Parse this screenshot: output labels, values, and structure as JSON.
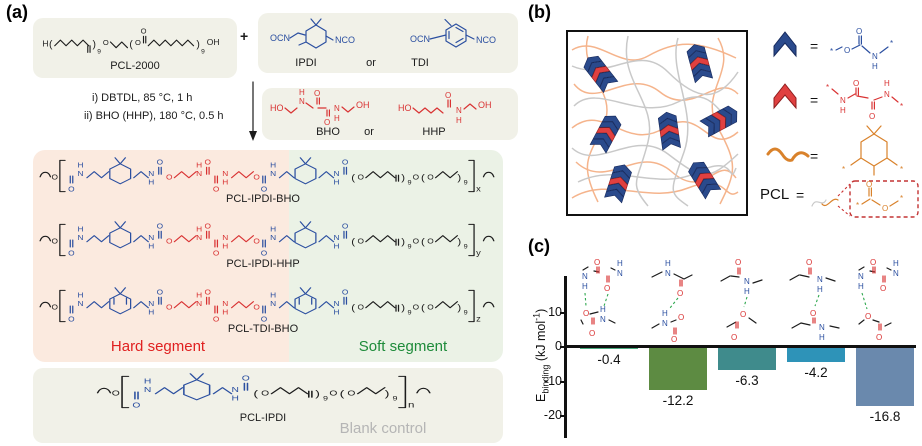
{
  "panels": {
    "a": "(a)",
    "b": "(b)",
    "c": "(c)"
  },
  "atoms": {
    "H": "H",
    "O": "O",
    "N": "N",
    "OH": "OH",
    "HO": "HO",
    "OCN": "OCN",
    "NCO": "NCO",
    "star": "*",
    "lp": "(",
    "rp": ")",
    "plus": "+",
    "eq": "="
  },
  "subs": {
    "x": "x",
    "y": "y",
    "z": "z",
    "n": "n",
    "nine": "9"
  },
  "scheme": {
    "pcl2000": "PCL-2000",
    "ipdi": "IPDI",
    "or_isocyanate": "or",
    "tdi": "TDI",
    "cond1": "i) DBTDL, 85 °C, 1 h",
    "cond2": "ii) BHO (HHP), 180 °C, 0.5 h",
    "bho": "BHO",
    "or_diol": "or",
    "hhp": "HHP",
    "product1": "PCL-IPDI-BHO",
    "product2": "PCL-IPDI-HHP",
    "product3": "PCL-TDI-BHO",
    "hard_segment": "Hard segment",
    "soft_segment": "Soft segment",
    "blank_name": "PCL-IPDI",
    "blank_caption": "Blank control"
  },
  "network": {
    "pcl": "PCL",
    "eq": "=",
    "legend_meanings": [
      "carbamate-group",
      "oxamide-group",
      "isophorone-ring",
      "pcl-ester-chain"
    ]
  },
  "colors": {
    "hard_segment_bg": "#fbeadf",
    "soft_segment_bg": "#ebf2e6",
    "reactant_bg": "#f1f1e8",
    "blue_struct": "#2b4fa0",
    "red_struct": "#d93333",
    "hard_label": "#e02020",
    "soft_label": "#1e8b3a",
    "blank_label": "#b5b5b5",
    "chain_orange": "#f5b48c",
    "chain_gray": "#c9c9c9",
    "chevron_blue": "#2a4a8c",
    "chevron_red": "#e04040",
    "hbond_green": "#2fa84f"
  },
  "chart_data": {
    "type": "bar",
    "title": "",
    "ylabel_parts": {
      "base": "E",
      "sub": "binding",
      "unit": " (kJ mol",
      "sup": "-1",
      "close": ")"
    },
    "yticks": [
      10,
      0,
      -10,
      -20
    ],
    "ylim": [
      -22,
      16
    ],
    "grid": false,
    "legend": "none",
    "categories": [
      "oxamide–carbamate double H-bond",
      "amide C=O to carbamate N–H",
      "amide N–H to ester O",
      "amide N–H to amide C=O",
      "oxamide N–H to ester O"
    ],
    "values": [
      -0.4,
      -12.2,
      -6.3,
      -4.2,
      -16.8
    ],
    "value_labels": [
      "-0.4",
      "-12.2",
      "-6.3",
      "-4.2",
      "-16.8"
    ],
    "bar_colors": [
      "#4aab80",
      "#5d8b42",
      "#3f8b8c",
      "#2e93b8",
      "#6a89ad"
    ]
  }
}
